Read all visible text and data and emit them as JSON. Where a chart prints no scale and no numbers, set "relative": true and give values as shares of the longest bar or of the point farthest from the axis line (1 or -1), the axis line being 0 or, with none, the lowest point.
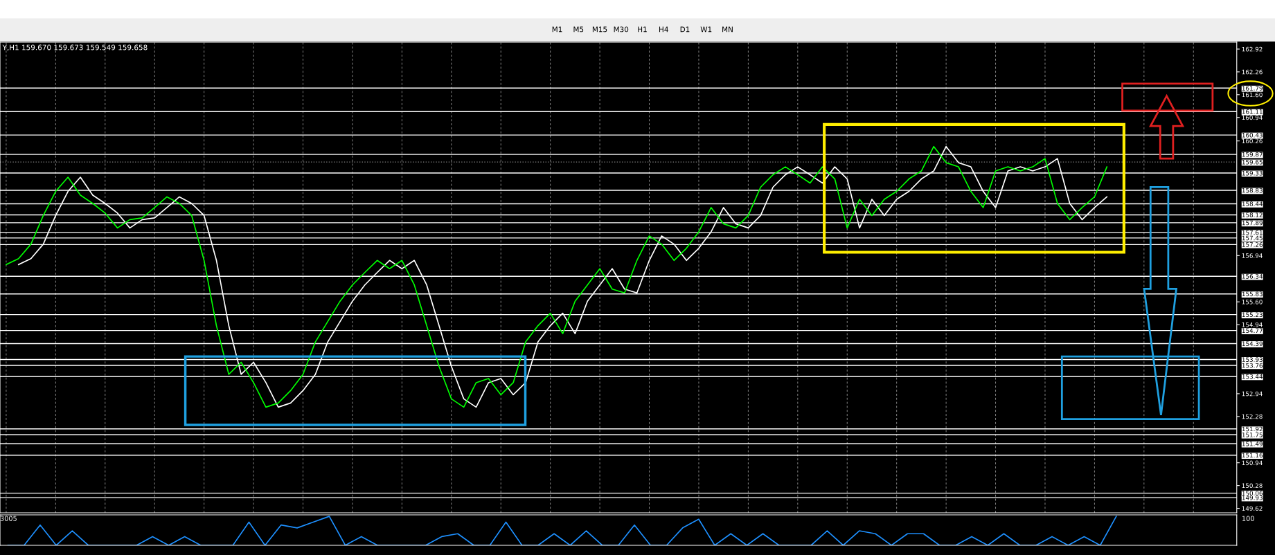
{
  "chart_data": [
    {
      "type": "line",
      "subtitle": "Y,H1 159.670 159.673 159.549 159.658",
      "annotations": [
        "M1",
        "M5",
        "M15",
        "M30",
        "H1",
        "H4",
        "D1",
        "W1",
        "MN"
      ],
      "categories": [
        null,
        null,
        null,
        null,
        null,
        null,
        null,
        null,
        null,
        null,
        null,
        null,
        null,
        null,
        null,
        null,
        null,
        null,
        null,
        null,
        null,
        null,
        null,
        null,
        null,
        null,
        null,
        null,
        null,
        null,
        null,
        null,
        null,
        null,
        null,
        null,
        null,
        null,
        null,
        null,
        null,
        null,
        null,
        null,
        null,
        null,
        null,
        null,
        null,
        null,
        null,
        null,
        null,
        null,
        null,
        null,
        null,
        null,
        null,
        null,
        null,
        null,
        null,
        null,
        null,
        null,
        null,
        null,
        null,
        null,
        null,
        null,
        null,
        null,
        null,
        null,
        null,
        null,
        null,
        null,
        null,
        null,
        null,
        null,
        null,
        null,
        null,
        null,
        null,
        null,
        null,
        null,
        null,
        null,
        null,
        null,
        null,
        null,
        null,
        null
      ],
      "series": [
        {
          "color": "#ffffff",
          "values": [
            null,
            156.68,
            156.85,
            157.27,
            158.1,
            158.8,
            159.21,
            158.69,
            158.45,
            158.17,
            157.74,
            157.98,
            158.03,
            158.33,
            158.64,
            158.45,
            158.1,
            156.8,
            154.91,
            153.5,
            153.85,
            153.26,
            152.55,
            152.67,
            153.03,
            153.5,
            154.44,
            155.03,
            155.62,
            156.09,
            156.45,
            156.8,
            156.56,
            156.8,
            156.09,
            154.91,
            153.73,
            152.79,
            152.55,
            153.26,
            153.38,
            152.91,
            153.26,
            154.44,
            154.91,
            155.27,
            154.68,
            155.62,
            156.09,
            156.56,
            155.97,
            155.86,
            156.8,
            157.51,
            157.27,
            156.8,
            157.15,
            157.63,
            158.33,
            157.86,
            157.74,
            158.1,
            158.92,
            159.28,
            159.51,
            159.28,
            159.04,
            159.51,
            159.16,
            157.74,
            158.57,
            158.1,
            158.57,
            158.8,
            159.16,
            159.39,
            160.1,
            159.63,
            159.51,
            158.8,
            158.33,
            159.39,
            159.51,
            159.39,
            159.51,
            159.75,
            158.45,
            157.98,
            158.33,
            158.64,
            null,
            null,
            null,
            null,
            null,
            null,
            null,
            null,
            null,
            null
          ]
        },
        {
          "color": "#00ff00",
          "values": [
            156.68,
            156.85,
            157.27,
            158.1,
            158.8,
            159.21,
            158.69,
            158.45,
            158.17,
            157.74,
            157.98,
            158.03,
            158.33,
            158.64,
            158.45,
            158.1,
            156.8,
            154.91,
            153.5,
            153.85,
            153.26,
            152.55,
            152.67,
            153.03,
            153.5,
            154.44,
            155.03,
            155.62,
            156.09,
            156.45,
            156.8,
            156.56,
            156.8,
            156.09,
            154.91,
            153.73,
            152.79,
            152.55,
            153.26,
            153.38,
            152.91,
            153.26,
            154.44,
            154.91,
            155.27,
            154.68,
            155.62,
            156.09,
            156.56,
            155.97,
            155.86,
            156.8,
            157.51,
            157.27,
            156.8,
            157.15,
            157.63,
            158.33,
            157.86,
            157.74,
            158.1,
            158.92,
            159.28,
            159.51,
            159.28,
            159.04,
            159.51,
            159.16,
            157.74,
            158.57,
            158.1,
            158.57,
            158.8,
            159.16,
            159.39,
            160.1,
            159.63,
            159.51,
            158.8,
            158.33,
            159.39,
            159.51,
            159.39,
            159.51,
            159.75,
            158.45,
            157.98,
            158.33,
            158.64,
            159.51,
            null,
            null,
            null,
            null,
            null,
            null,
            null,
            null,
            null,
            null
          ]
        }
      ],
      "ylim": [
        149.49,
        163.12
      ],
      "yticks": [
        162.92,
        162.26,
        {
          "value": 161.6,
          "label": "161.60"
        },
        160.94,
        160.26,
        156.94,
        {
          "value": 155.6,
          "label": "155.60"
        },
        154.94,
        152.94,
        152.28,
        150.94,
        150.28,
        149.62
      ],
      "ref_lines": [
        {
          "axis": "y",
          "value": 161.79,
          "label": "161.79"
        },
        {
          "axis": "y",
          "value": 161.11,
          "label": "161.11"
        },
        {
          "axis": "y",
          "value": 160.43,
          "label": "160.43"
        },
        {
          "axis": "y",
          "value": 159.87,
          "label": "159.87"
        },
        {
          "axis": "y",
          "value": 159.65,
          "label": "159.65",
          "color": "#808080",
          "line_style": "dotted"
        },
        {
          "axis": "y",
          "value": 159.33,
          "label": "159.33"
        },
        {
          "axis": "y",
          "value": 158.83,
          "label": "158.83"
        },
        {
          "axis": "y",
          "value": 158.44,
          "label": "158.44"
        },
        {
          "axis": "y",
          "value": 158.12,
          "label": "158.12"
        },
        {
          "axis": "y",
          "value": 157.89,
          "label": "157.89"
        },
        {
          "axis": "y",
          "value": 157.61,
          "label": "157.61"
        },
        {
          "axis": "y",
          "value": 157.45,
          "label": "157.45"
        },
        {
          "axis": "y",
          "value": 157.26,
          "label": "157.26"
        },
        {
          "axis": "y",
          "value": 156.34,
          "label": "156.34"
        },
        {
          "axis": "y",
          "value": 155.83,
          "label": "155.83"
        },
        {
          "axis": "y",
          "value": 155.23,
          "label": "155.23"
        },
        {
          "axis": "y",
          "value": 154.77,
          "label": "154.77"
        },
        {
          "axis": "y",
          "value": 154.39,
          "label": "154.39"
        },
        {
          "axis": "y",
          "value": 153.93,
          "label": "153.93"
        },
        {
          "axis": "y",
          "value": 153.76,
          "label": "153.76"
        },
        {
          "axis": "y",
          "value": 153.44,
          "label": "153.44"
        },
        {
          "axis": "y",
          "value": 151.92,
          "label": "151.92"
        },
        {
          "axis": "y",
          "value": 151.75,
          "label": "151.75"
        },
        {
          "axis": "y",
          "value": 151.49,
          "label": "151.49"
        },
        {
          "axis": "y",
          "value": 151.16,
          "label": "151.16"
        },
        {
          "axis": "y",
          "value": 150.06,
          "label": "150.06"
        },
        {
          "axis": "y",
          "value": 149.93,
          "label": "149.93"
        }
      ],
      "grid": "x",
      "marker": "none",
      "line_style": "solid",
      "tick_labels": "y"
    },
    {
      "type": "line",
      "relative": true,
      "annotations": [
        "3005",
        "100"
      ],
      "categories": [
        null,
        null,
        null,
        null,
        null,
        null,
        null,
        null,
        null,
        null,
        null,
        null,
        null,
        null,
        null,
        null,
        null,
        null,
        null,
        null,
        null,
        null,
        null,
        null,
        null,
        null,
        null,
        null,
        null,
        null,
        null,
        null,
        null,
        null,
        null,
        null,
        null,
        null,
        null,
        null,
        null,
        null,
        null,
        null,
        null,
        null,
        null,
        null,
        null,
        null,
        null,
        null,
        null,
        null,
        null,
        null,
        null,
        null,
        null,
        null,
        null,
        null,
        null,
        null,
        null,
        null,
        null,
        null,
        null,
        null,
        null,
        null,
        null,
        null,
        null,
        null,
        null
      ],
      "series": [
        {
          "color": "#1e90ff",
          "values": [
            0,
            0,
            0.7,
            0,
            0.5,
            0,
            0,
            0,
            0,
            0.3,
            0,
            0.3,
            0,
            0,
            0,
            0.8,
            0,
            0.7,
            0.6,
            0.8,
            1.0,
            0,
            0.3,
            0,
            0,
            0,
            0,
            0.3,
            0.4,
            0,
            0,
            0.8,
            0,
            0,
            0.4,
            0,
            0.5,
            0,
            0,
            0.7,
            0,
            0,
            0.6,
            0.9,
            0,
            0.4,
            0,
            0.4,
            0,
            0,
            0,
            0.5,
            0,
            0.5,
            0.4,
            0,
            0.4,
            0.4,
            0,
            0,
            0.3,
            0,
            0.4,
            0,
            0,
            0.3,
            0,
            0.3,
            0,
            1.0,
            null,
            null,
            null,
            null,
            null,
            null,
            null
          ]
        }
      ],
      "marker": "none",
      "line_style": "solid"
    }
  ]
}
